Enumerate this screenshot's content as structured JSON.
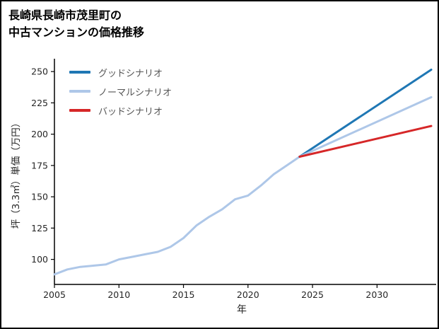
{
  "title": {
    "line1": "長崎県長崎市茂里町の",
    "line2": "中古マンションの価格推移"
  },
  "chart_data": {
    "type": "line",
    "title": "長崎県長崎市茂里町の中古マンションの価格推移",
    "xlabel": "年",
    "ylabel": "坪（3.3㎡）単価（万円）",
    "xlim": [
      2005,
      2034.2
    ],
    "ylim": [
      80,
      258
    ],
    "xticks": [
      2005,
      2010,
      2015,
      2020,
      2025,
      2030
    ],
    "yticks": [
      100,
      125,
      150,
      175,
      200,
      225,
      250
    ],
    "grid": false,
    "legend_position": "upper-left",
    "legend": [
      {
        "label": "グッドシナリオ",
        "color": "#1f77b4"
      },
      {
        "label": "ノーマルシナリオ",
        "color": "#aec7e8"
      },
      {
        "label": "バッドシナリオ",
        "color": "#d62728"
      }
    ],
    "series": [
      {
        "name": "historical",
        "color": "#aec7e8",
        "width": 3,
        "x": [
          2005,
          2006,
          2007,
          2008,
          2009,
          2010,
          2011,
          2012,
          2013,
          2014,
          2015,
          2016,
          2017,
          2018,
          2019,
          2020,
          2021,
          2022,
          2023,
          2024
        ],
        "y": [
          88,
          92,
          94,
          95,
          96,
          100,
          102,
          104,
          106,
          110,
          117,
          127,
          134,
          140,
          148,
          151,
          159,
          168,
          175,
          182
        ]
      },
      {
        "name": "good-scenario",
        "color": "#1f77b4",
        "width": 3,
        "x": [
          2024,
          2034.2
        ],
        "y": [
          182,
          251.5
        ]
      },
      {
        "name": "normal-scenario",
        "color": "#aec7e8",
        "width": 3,
        "x": [
          2024,
          2034.2
        ],
        "y": [
          182,
          229.5
        ]
      },
      {
        "name": "bad-scenario",
        "color": "#d62728",
        "width": 3,
        "x": [
          2024,
          2034.2
        ],
        "y": [
          182,
          206.5
        ]
      }
    ]
  }
}
